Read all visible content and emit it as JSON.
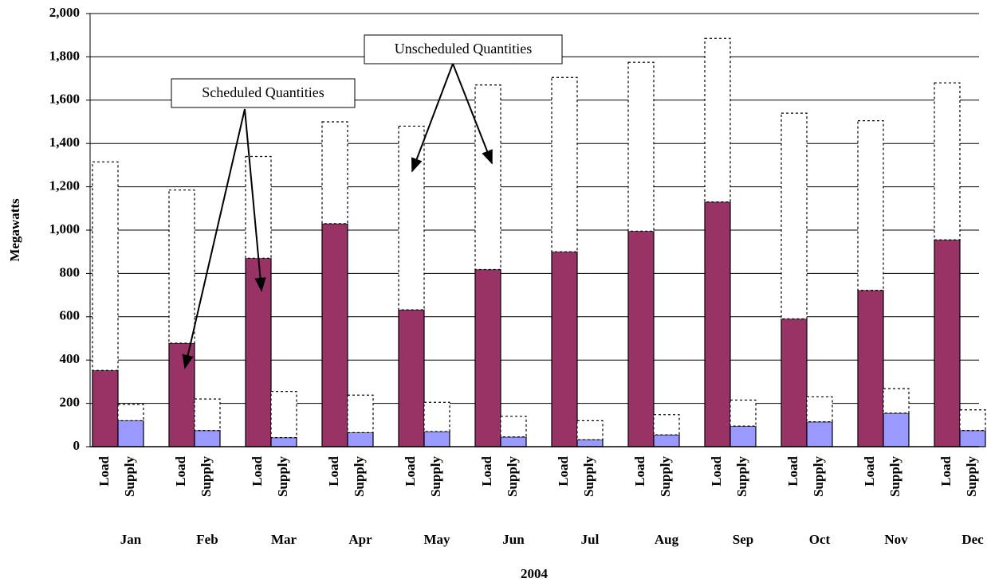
{
  "chart_data": {
    "type": "grouped-stacked-bar",
    "x_label": "2004",
    "y_label": "Megawatts",
    "categories": [
      "Jan",
      "Feb",
      "Mar",
      "Apr",
      "May",
      "Jun",
      "Jul",
      "Aug",
      "Sep",
      "Oct",
      "Nov",
      "Dec"
    ],
    "groups": [
      "Load",
      "Supply"
    ],
    "series": [
      {
        "name": "Scheduled Quantities",
        "colors": [
          "#993366",
          "#9999ff"
        ],
        "values": [
          [
            352,
            120
          ],
          [
            478,
            75
          ],
          [
            870,
            42
          ],
          [
            1030,
            65
          ],
          [
            632,
            70
          ],
          [
            818,
            45
          ],
          [
            900,
            32
          ],
          [
            995,
            55
          ],
          [
            1130,
            95
          ],
          [
            590,
            115
          ],
          [
            722,
            155
          ],
          [
            955,
            75
          ]
        ]
      },
      {
        "name": "Unscheduled Quantities",
        "colors": [
          "#ffffff",
          "#ffffff"
        ],
        "dashed": true,
        "values": [
          [
            963,
            75
          ],
          [
            707,
            145
          ],
          [
            470,
            213
          ],
          [
            470,
            173
          ],
          [
            848,
            135
          ],
          [
            852,
            95
          ],
          [
            805,
            88
          ],
          [
            780,
            93
          ],
          [
            755,
            120
          ],
          [
            950,
            115
          ],
          [
            783,
            113
          ],
          [
            725,
            95
          ]
        ]
      }
    ],
    "ylim": [
      0,
      2000
    ],
    "yticks": [
      0,
      200,
      400,
      600,
      800,
      {
        "value": 1000,
        "label": "1,000"
      },
      {
        "value": 1200,
        "label": "1,200"
      },
      {
        "value": 1400,
        "label": "1,400"
      },
      {
        "value": 1600,
        "label": "1,600"
      },
      {
        "value": 1800,
        "label": "1,800"
      },
      {
        "value": 2000,
        "label": "2,000"
      }
    ],
    "grid": true
  }
}
